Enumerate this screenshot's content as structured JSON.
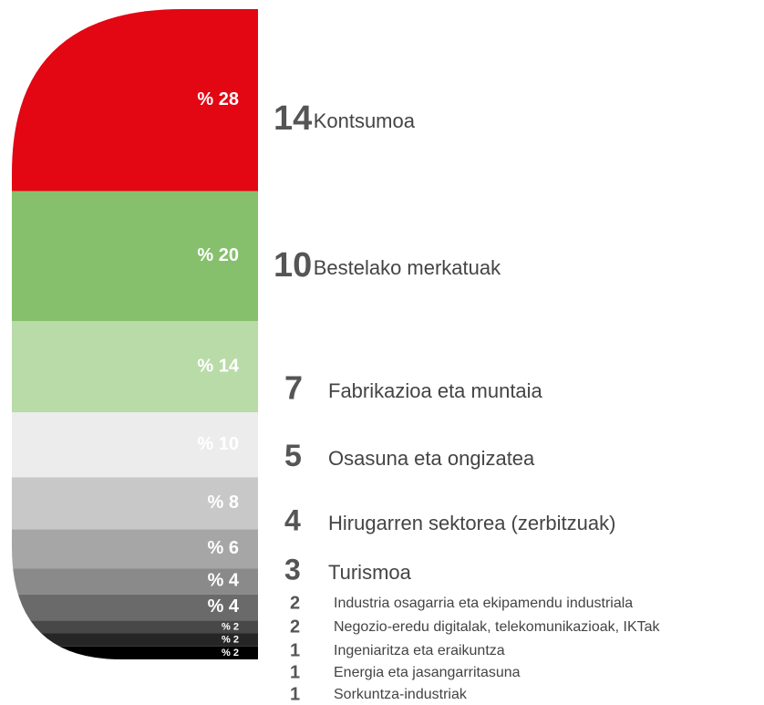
{
  "chart_data": {
    "type": "stacked-shape",
    "categories": [
      "Kontsumoa",
      "Bestelako merkatuak",
      "Fabrikazioa eta muntaia",
      "Osasuna eta ongizatea",
      "Hirugarren sektorea (zerbitzuak)",
      "Turismoa",
      "Industria osagarria eta ekipamendu industriala",
      "Negozio-eredu digitalak, telekomunikazioak, IKTak",
      "Ingeniaritza eta eraikuntza",
      "Energia eta jasangarritasuna",
      "Sorkuntza-industriak"
    ],
    "values": [
      28,
      20,
      14,
      10,
      8,
      6,
      4,
      4,
      2,
      2,
      2
    ],
    "value_labels": [
      "% 28",
      "% 20",
      "% 14",
      "% 10",
      "% 8",
      "% 6",
      "% 4",
      "% 4",
      "% 2",
      "% 2",
      "% 2"
    ],
    "counts": [
      14,
      10,
      7,
      5,
      4,
      3,
      2,
      2,
      1,
      1,
      1
    ],
    "colors": [
      "#e30613",
      "#86c06c",
      "#b9dba8",
      "#ececec",
      "#c8c8c8",
      "#a6a6a6",
      "#8a8a8a",
      "#6a6a6a",
      "#484848",
      "#262626",
      "#000000"
    ]
  }
}
